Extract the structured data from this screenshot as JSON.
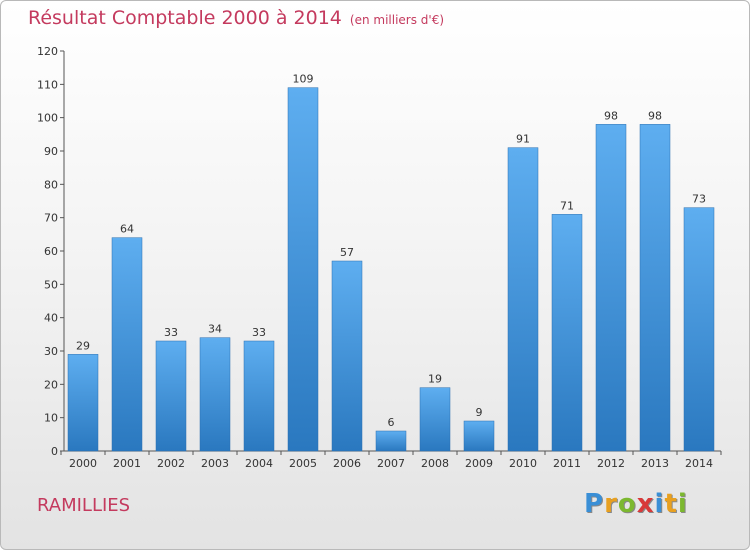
{
  "chart_data": {
    "type": "bar",
    "title": "Résultat Comptable 2000 à 2014",
    "subtitle": "(en milliers d'€)",
    "categories": [
      "2000",
      "2001",
      "2002",
      "2003",
      "2004",
      "2005",
      "2006",
      "2007",
      "2008",
      "2009",
      "2010",
      "2011",
      "2012",
      "2013",
      "2014"
    ],
    "values": [
      29,
      64,
      33,
      34,
      33,
      109,
      57,
      6,
      19,
      9,
      91,
      71,
      98,
      98,
      73
    ],
    "ylim": [
      0,
      120
    ],
    "yticks": [
      0,
      10,
      20,
      30,
      40,
      50,
      60,
      70,
      80,
      90,
      100,
      110,
      120
    ],
    "xlabel": "",
    "ylabel": "",
    "grid": false,
    "bar_color": "#3a8fd6"
  },
  "place_name": "RAMILLIES",
  "logo": {
    "letters": [
      "P",
      "r",
      "o",
      "x",
      "i",
      "t",
      "i"
    ],
    "colors": [
      "#3a8fd6",
      "#e8a020",
      "#7cb82f",
      "#d83a3a",
      "#3a8fd6",
      "#e8a020",
      "#7cb82f"
    ]
  }
}
